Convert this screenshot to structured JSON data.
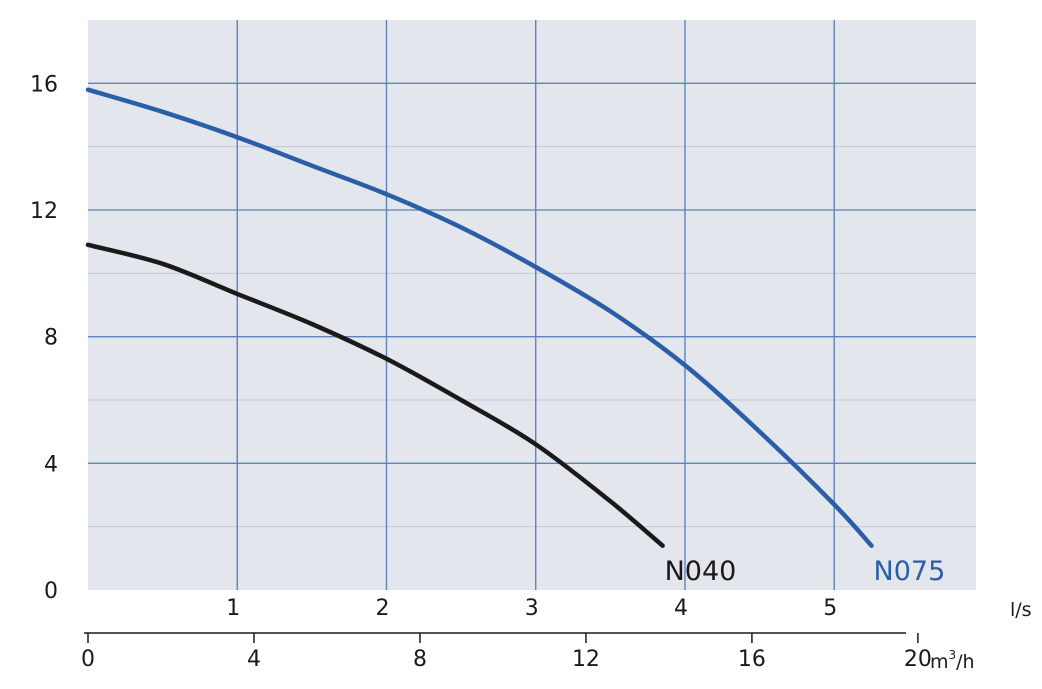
{
  "chart_data": {
    "type": "line",
    "title": "",
    "xlabel_primary": "l/s",
    "xlabel_secondary": "m³/h",
    "ylabel": "",
    "grid": true,
    "x_primary": {
      "unit": "l/s",
      "ticks": [
        1,
        2,
        3,
        4,
        5
      ],
      "tick_labels": [
        "1",
        "2",
        "3",
        "4",
        "5"
      ],
      "range": [
        0,
        5.95
      ]
    },
    "x_secondary": {
      "unit_base": "m",
      "unit_sup": "3",
      "unit_rest": "/h",
      "ticks": [
        0,
        4,
        8,
        12,
        16,
        20
      ],
      "tick_labels": [
        "0",
        "4",
        "8",
        "12",
        "16",
        "20"
      ],
      "range": [
        0,
        21.4
      ]
    },
    "y": {
      "ticks": [
        0,
        4,
        8,
        12,
        16
      ],
      "tick_labels": [
        "0",
        "4",
        "8",
        "12",
        "16"
      ],
      "range": [
        0,
        18
      ]
    },
    "series": [
      {
        "name": "N040",
        "color": "#1a1a1a",
        "points": [
          [
            0,
            10.9
          ],
          [
            0.5,
            10.3
          ],
          [
            1,
            9.35
          ],
          [
            1.5,
            8.4
          ],
          [
            2,
            7.3
          ],
          [
            2.5,
            6.0
          ],
          [
            3,
            4.6
          ],
          [
            3.5,
            2.8
          ],
          [
            3.85,
            1.4
          ]
        ]
      },
      {
        "name": "N075",
        "color": "#2b5ea8",
        "points": [
          [
            0,
            15.8
          ],
          [
            0.5,
            15.1
          ],
          [
            1,
            14.3
          ],
          [
            1.5,
            13.4
          ],
          [
            2,
            12.5
          ],
          [
            2.5,
            11.45
          ],
          [
            3,
            10.2
          ],
          [
            3.5,
            8.8
          ],
          [
            4,
            7.1
          ],
          [
            4.5,
            5.0
          ],
          [
            5,
            2.7
          ],
          [
            5.25,
            1.4
          ]
        ]
      }
    ]
  }
}
